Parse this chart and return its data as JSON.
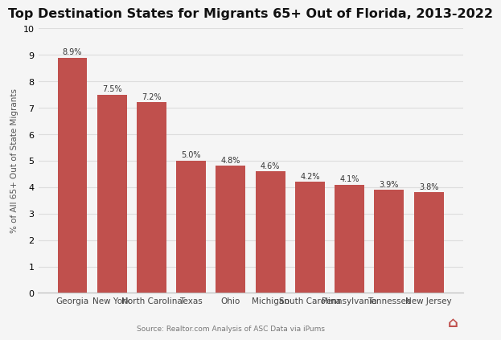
{
  "title": "Top Destination States for Migrants 65+ Out of Florida, 2013-2022",
  "categories": [
    "Georgia",
    "New York",
    "North Carolina",
    "Texas",
    "Ohio",
    "Michigan",
    "South Carolina",
    "Pennsylvania",
    "Tennessee",
    "New Jersey"
  ],
  "values": [
    8.9,
    7.5,
    7.2,
    5.0,
    4.8,
    4.6,
    4.2,
    4.1,
    3.9,
    3.8
  ],
  "labels": [
    "8.9%",
    "7.5%",
    "7.2%",
    "5.0%",
    "4.8%",
    "4.6%",
    "4.2%",
    "4.1%",
    "3.9%",
    "3.8%"
  ],
  "bar_color": "#c0504d",
  "ylabel": "% of All 65+ Out of State Migrants",
  "ylim": [
    0,
    10
  ],
  "yticks": [
    0,
    1,
    2,
    3,
    4,
    5,
    6,
    7,
    8,
    9,
    10
  ],
  "source": "Source: Realtor.com Analysis of ASC Data via iPums",
  "background_color": "#f5f5f5",
  "title_fontsize": 11.5,
  "label_fontsize": 7.0,
  "ylabel_fontsize": 7.5,
  "xtick_fontsize": 7.5,
  "ytick_fontsize": 8,
  "source_fontsize": 6.5,
  "bar_width": 0.75,
  "grid_color": "#dddddd",
  "spine_color": "#bbbbbb"
}
